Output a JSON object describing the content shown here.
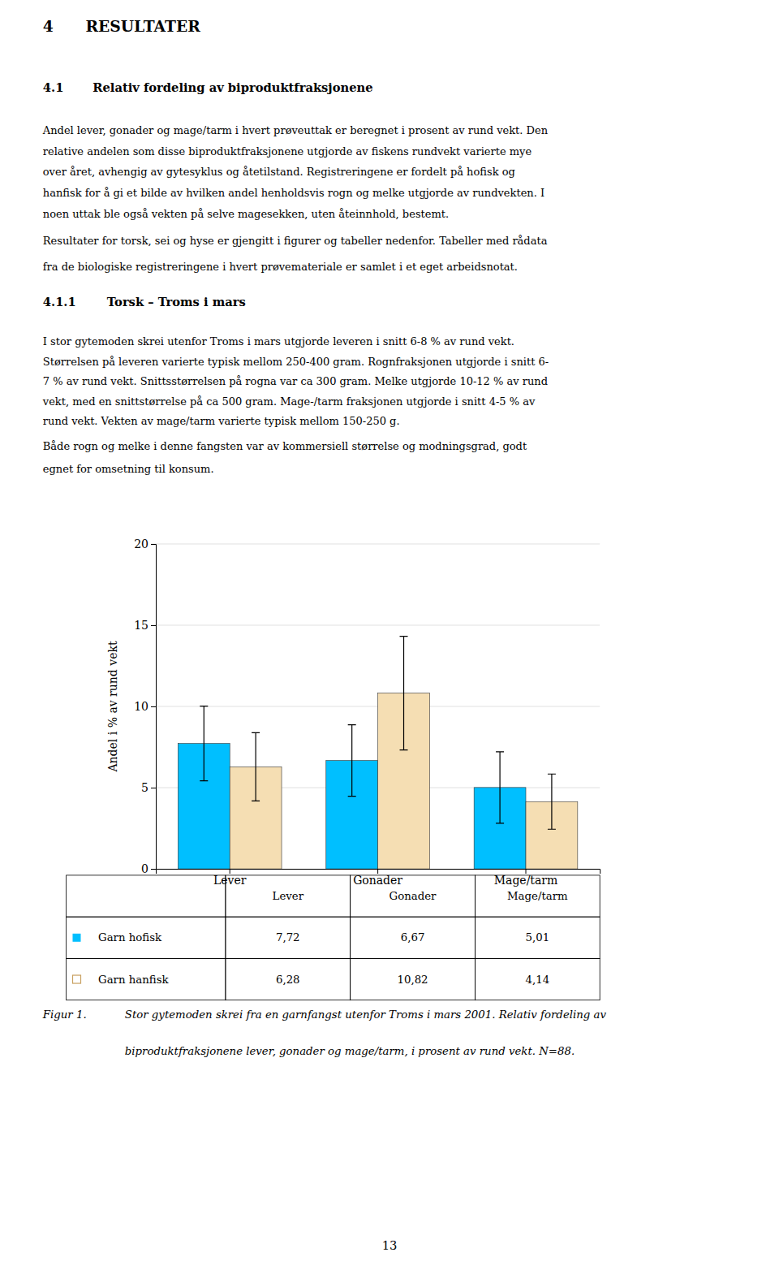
{
  "headings": [
    {
      "number": "4",
      "text": "RESULTATER"
    },
    {
      "number": "4.1",
      "text": "Relativ fordeling av biproduktfraksjonene"
    },
    {
      "number": "4.1.1",
      "text": "Torsk – Troms i mars"
    }
  ],
  "paragraphs": [
    [
      "Andel lever, gonader og mage/tarm i hvert prøveuttak er beregnet i prosent av rund vekt. Den",
      "relative andelen som disse biproduktfraksjonene utgjorde av fiskens rundvekt varierte mye",
      "over året, avhengig av gytesyklus og åtetilstand. Registreringene er fordelt på hofisk og",
      "hanfisk for å gi et bilde av hvilken andel henholdsvis rogn og melke utgjorde av rundvekten. I",
      "noen uttak ble også vekten på selve magesekken, uten åteinnhold, bestemt."
    ],
    [
      "Resultater for torsk, sei og hyse er gjengitt i figurer og tabeller nedenfor. Tabeller med rådata",
      "fra de biologiske registreringene i hvert prøvemateriale er samlet i et eget arbeidsnotat."
    ],
    [
      "I stor gytemoden skrei utenfor Troms i mars utgjorde leveren i snitt 6-8 % av rund vekt.",
      "Størrelsen på leveren varierte typisk mellom 250-400 gram. Rognfraksjonen utgjorde i snitt 6-",
      "7 % av rund vekt. Snittsstørrelsen på rogna var ca 300 gram. Melke utgjorde 10-12 % av rund",
      "vekt, med en snittstørrelse på ca 500 gram. Mage-/tarm fraksjonen utgjorde i snitt 4-5 % av",
      "rund vekt. Vekten av mage/tarm varierte typisk mellom 150-250 g."
    ],
    [
      "Både rogn og melke i denne fangsten var av kommersiell størrelse og modningsgrad, godt",
      "egnet for omsetning til konsum."
    ]
  ],
  "chart_data": {
    "type": "bar",
    "categories": [
      "Lever",
      "Gonader",
      "Mage/tarm"
    ],
    "series": [
      {
        "name": "Garn hofisk",
        "color": "#00BFFF",
        "values": [
          7.72,
          6.67,
          5.01
        ],
        "errors": [
          2.3,
          2.2,
          2.2
        ]
      },
      {
        "name": "Garn hanfisk",
        "color": "#F5DEB3",
        "values": [
          6.28,
          10.82,
          4.14
        ],
        "errors": [
          2.1,
          3.5,
          1.7
        ]
      }
    ],
    "ylabel": "Andel i % av rund vekt",
    "ylim": [
      0,
      20
    ],
    "yticks": [
      0,
      5,
      10,
      15,
      20
    ],
    "grid": true
  },
  "table": {
    "columns": [
      "Lever",
      "Gonader",
      "Mage/tarm"
    ],
    "rows": [
      {
        "label": "Garn hofisk",
        "marker": "filled-square",
        "color": "#00BFFF",
        "cells": [
          "7,72",
          "6,67",
          "5,01"
        ]
      },
      {
        "label": "Garn hanfisk",
        "marker": "open-square",
        "color": "#c8a060",
        "cells": [
          "6,28",
          "10,82",
          "4,14"
        ]
      }
    ]
  },
  "caption": {
    "label": "Figur 1.",
    "lines": [
      "Stor gytemoden skrei fra en garnfangst utenfor Troms i mars 2001. Relativ fordeling av",
      "biproduktfraksjonene lever, gonader og mage/tarm, i prosent av rund vekt. N=88."
    ]
  },
  "page_number": "13"
}
